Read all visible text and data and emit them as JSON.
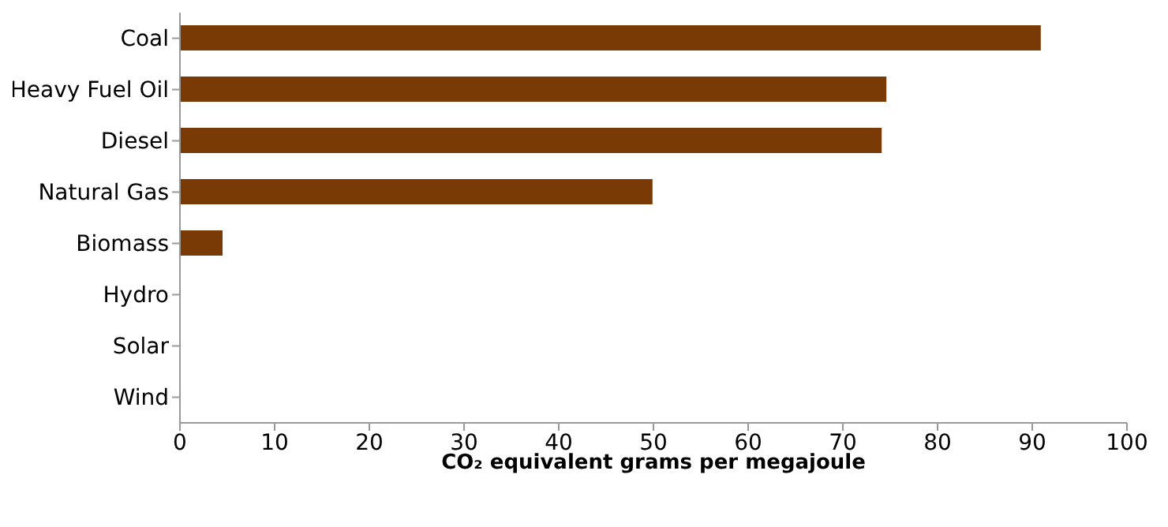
{
  "chart_data": {
    "type": "bar",
    "orientation": "horizontal",
    "xlabel": "CO₂ equivalent grams per megajoule",
    "categories": [
      "Coal",
      "Heavy Fuel Oil",
      "Diesel",
      "Natural Gas",
      "Biomass",
      "Hydro",
      "Solar",
      "Wind"
    ],
    "values": [
      90.9,
      74.6,
      74.1,
      49.9,
      4.5,
      0,
      0,
      0
    ],
    "color": "#7a3a06",
    "xlim": [
      0,
      100
    ],
    "xticks": [
      0,
      10,
      20,
      30,
      40,
      50,
      60,
      70,
      80,
      90,
      100
    ],
    "grid": false,
    "legend": false
  }
}
